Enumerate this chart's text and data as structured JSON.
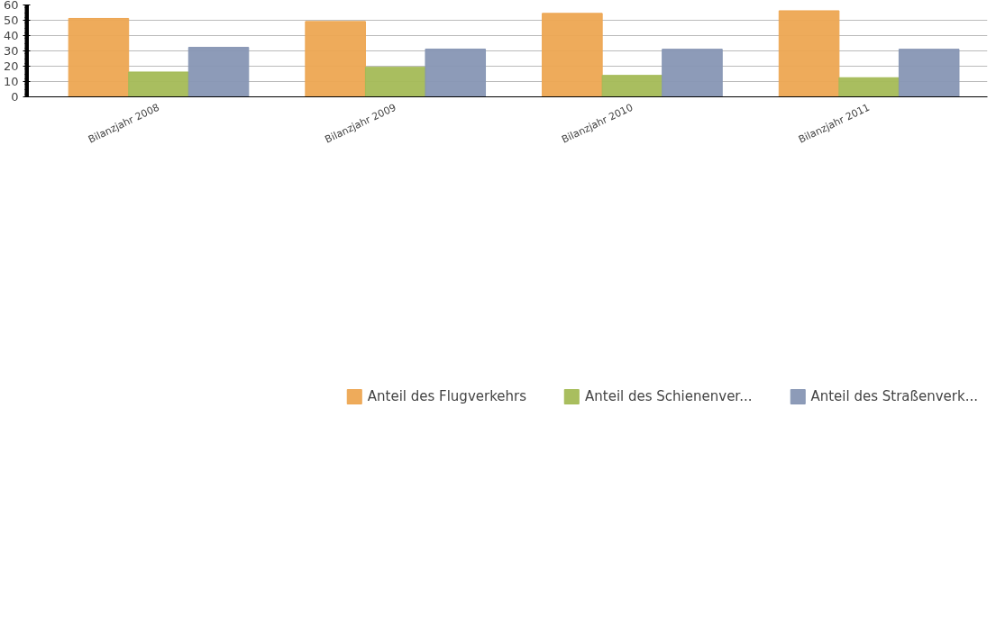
{
  "chart_data": {
    "type": "bar",
    "categories": [
      "Bilanzjahr 2008",
      "Bilanzjahr 2009",
      "Bilanzjahr 2010",
      "Bilanzjahr 2011"
    ],
    "series": [
      {
        "name": "Anteil des Flugverkehrs",
        "color": "#eda652",
        "values": [
          51.2,
          49.2,
          54.5,
          56.2
        ]
      },
      {
        "name": "Anteil des Schienenver...",
        "color": "#a4bb56",
        "values": [
          16.2,
          19.3,
          14,
          12.5
        ]
      },
      {
        "name": "Anteil des Straßenverk...",
        "color": "#8796b4",
        "values": [
          32.3,
          31.2,
          31.1,
          31.1
        ]
      }
    ],
    "ylim": [
      0,
      60
    ],
    "yticks": [
      0,
      10,
      20,
      30,
      40,
      50,
      60
    ],
    "grid": "y",
    "legend": "bottom"
  }
}
